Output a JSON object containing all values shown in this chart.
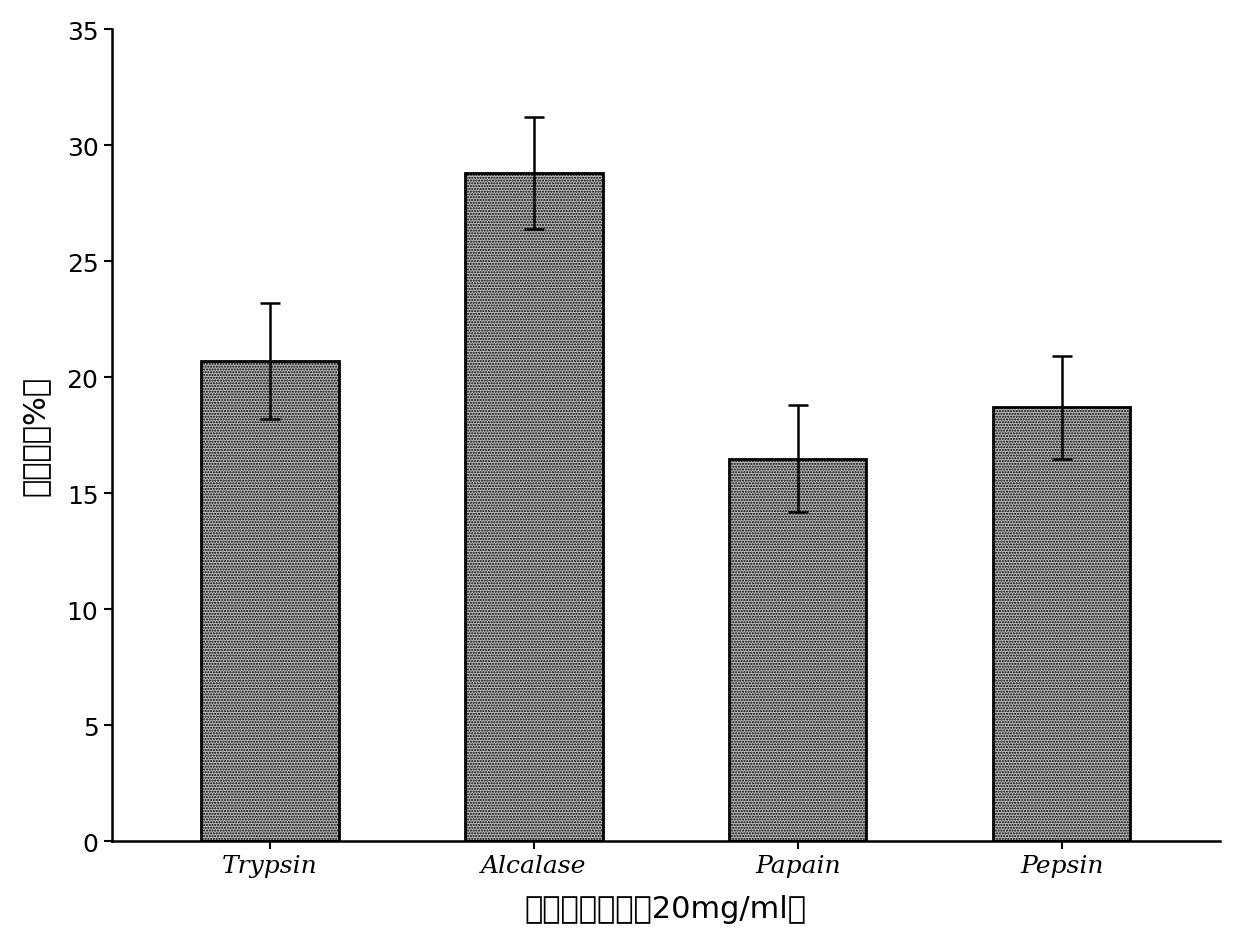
{
  "categories": [
    "Trypsin",
    "Alcalase",
    "Papain",
    "Pepsin"
  ],
  "values": [
    20.7,
    28.8,
    16.5,
    18.7
  ],
  "errors": [
    2.5,
    2.4,
    2.3,
    2.2
  ],
  "xlabel": "蛋白酶酶解物（20mg/ml）",
  "ylabel": "抑制率（%）",
  "ylim": [
    0,
    35
  ],
  "yticks": [
    0,
    5,
    10,
    15,
    20,
    25,
    30,
    35
  ],
  "bar_color": "#b8b8b8",
  "bar_edgecolor": "#000000",
  "bar_width": 0.52,
  "xlabel_fontsize": 22,
  "ylabel_fontsize": 22,
  "tick_fontsize": 18,
  "background_color": "#ffffff",
  "capsize": 7
}
